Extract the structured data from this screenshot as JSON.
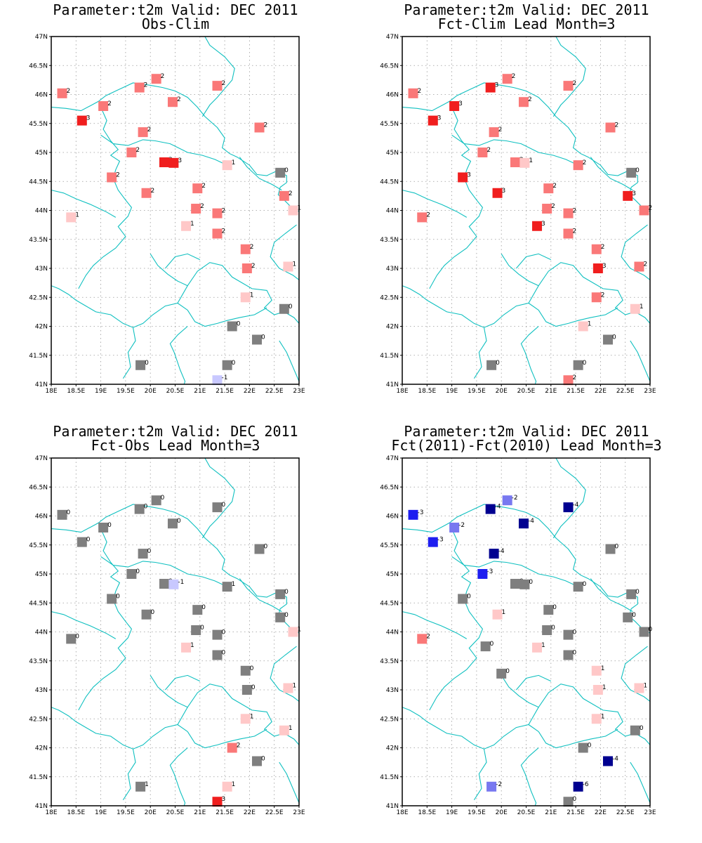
{
  "colors": {
    "-6": "#000090",
    "-4": "#000090",
    "-3": "#1e1ef0",
    "-2": "#7878f0",
    "-1": "#c8c8ff",
    "0": "#7f7f7f",
    "1": "#ffc8c8",
    "2": "#fa7878",
    "3": "#f01e1e",
    "coast": "#10c0c0",
    "grid": "#999999"
  },
  "axes": {
    "x_ticks": [
      "18E",
      "18.5E",
      "19E",
      "19.5E",
      "20E",
      "20.5E",
      "21E",
      "21.5E",
      "22E",
      "22.5E",
      "23E"
    ],
    "y_ticks": [
      "41N",
      "41.5N",
      "42N",
      "42.5N",
      "43N",
      "43.5N",
      "44N",
      "44.5N",
      "45N",
      "45.5N",
      "46N",
      "46.5N",
      "47N"
    ],
    "xlim": [
      18,
      23
    ],
    "ylim": [
      41,
      47
    ]
  },
  "panels": [
    {
      "title": "Parameter:t2m Valid: DEC 2011",
      "subtitle": "Obs-Clim",
      "stations": [
        {
          "lon": 18.22,
          "lat": 46.02,
          "v": 2
        },
        {
          "lon": 20.12,
          "lat": 46.27,
          "v": 2
        },
        {
          "lon": 19.78,
          "lat": 46.12,
          "v": 2
        },
        {
          "lon": 21.35,
          "lat": 46.15,
          "v": 2
        },
        {
          "lon": 19.05,
          "lat": 45.8,
          "v": 2
        },
        {
          "lon": 20.45,
          "lat": 45.87,
          "v": 2
        },
        {
          "lon": 18.62,
          "lat": 45.55,
          "v": 3
        },
        {
          "lon": 19.85,
          "lat": 45.35,
          "v": 2
        },
        {
          "lon": 22.2,
          "lat": 45.43,
          "v": 2
        },
        {
          "lon": 19.62,
          "lat": 45.0,
          "v": 2
        },
        {
          "lon": 20.28,
          "lat": 44.83,
          "v": 3
        },
        {
          "lon": 20.47,
          "lat": 44.82,
          "v": 3
        },
        {
          "lon": 21.55,
          "lat": 44.78,
          "v": 1
        },
        {
          "lon": 22.62,
          "lat": 44.65,
          "v": 0
        },
        {
          "lon": 19.22,
          "lat": 44.57,
          "v": 2
        },
        {
          "lon": 19.92,
          "lat": 44.3,
          "v": 2
        },
        {
          "lon": 20.95,
          "lat": 44.38,
          "v": 2
        },
        {
          "lon": 22.7,
          "lat": 44.25,
          "v": 2
        },
        {
          "lon": 20.92,
          "lat": 44.03,
          "v": 2
        },
        {
          "lon": 21.35,
          "lat": 43.95,
          "v": 2
        },
        {
          "lon": 22.88,
          "lat": 44.0,
          "v": 1
        },
        {
          "lon": 18.4,
          "lat": 43.88,
          "v": 1
        },
        {
          "lon": 20.72,
          "lat": 43.73,
          "v": 1
        },
        {
          "lon": 21.35,
          "lat": 43.6,
          "v": 2
        },
        {
          "lon": 21.92,
          "lat": 43.33,
          "v": 2
        },
        {
          "lon": 21.95,
          "lat": 43.0,
          "v": 2
        },
        {
          "lon": 22.78,
          "lat": 43.03,
          "v": 1
        },
        {
          "lon": 21.92,
          "lat": 42.5,
          "v": 1
        },
        {
          "lon": 22.7,
          "lat": 42.3,
          "v": 0
        },
        {
          "lon": 21.65,
          "lat": 42.0,
          "v": 0
        },
        {
          "lon": 22.15,
          "lat": 41.77,
          "v": 0
        },
        {
          "lon": 19.8,
          "lat": 41.33,
          "v": 0
        },
        {
          "lon": 21.55,
          "lat": 41.33,
          "v": 0
        },
        {
          "lon": 21.35,
          "lat": 41.07,
          "v": -1
        }
      ]
    },
    {
      "title": "Parameter:t2m Valid: DEC 2011",
      "subtitle": "Fct-Clim Lead Month=3",
      "stations": [
        {
          "lon": 18.22,
          "lat": 46.02,
          "v": 2
        },
        {
          "lon": 20.12,
          "lat": 46.27,
          "v": 2
        },
        {
          "lon": 19.78,
          "lat": 46.12,
          "v": 3
        },
        {
          "lon": 21.35,
          "lat": 46.15,
          "v": 2
        },
        {
          "lon": 19.05,
          "lat": 45.8,
          "v": 3
        },
        {
          "lon": 20.45,
          "lat": 45.87,
          "v": 2
        },
        {
          "lon": 18.62,
          "lat": 45.55,
          "v": 3
        },
        {
          "lon": 19.85,
          "lat": 45.35,
          "v": 2
        },
        {
          "lon": 22.2,
          "lat": 45.43,
          "v": 2
        },
        {
          "lon": 19.62,
          "lat": 45.0,
          "v": 2
        },
        {
          "lon": 20.28,
          "lat": 44.83,
          "v": 2
        },
        {
          "lon": 20.47,
          "lat": 44.82,
          "v": 1
        },
        {
          "lon": 21.55,
          "lat": 44.78,
          "v": 2
        },
        {
          "lon": 22.62,
          "lat": 44.65,
          "v": 0
        },
        {
          "lon": 19.22,
          "lat": 44.57,
          "v": 3
        },
        {
          "lon": 19.92,
          "lat": 44.3,
          "v": 3
        },
        {
          "lon": 20.95,
          "lat": 44.38,
          "v": 2
        },
        {
          "lon": 22.55,
          "lat": 44.25,
          "v": 3
        },
        {
          "lon": 20.92,
          "lat": 44.03,
          "v": 2
        },
        {
          "lon": 21.35,
          "lat": 43.95,
          "v": 2
        },
        {
          "lon": 22.88,
          "lat": 44.0,
          "v": 2
        },
        {
          "lon": 18.4,
          "lat": 43.88,
          "v": 2
        },
        {
          "lon": 20.72,
          "lat": 43.73,
          "v": 3
        },
        {
          "lon": 21.35,
          "lat": 43.6,
          "v": 2
        },
        {
          "lon": 21.92,
          "lat": 43.33,
          "v": 2
        },
        {
          "lon": 21.95,
          "lat": 43.0,
          "v": 3
        },
        {
          "lon": 22.78,
          "lat": 43.03,
          "v": 2
        },
        {
          "lon": 21.92,
          "lat": 42.5,
          "v": 2
        },
        {
          "lon": 22.7,
          "lat": 42.3,
          "v": 1
        },
        {
          "lon": 21.65,
          "lat": 42.0,
          "v": 1
        },
        {
          "lon": 22.15,
          "lat": 41.77,
          "v": 0
        },
        {
          "lon": 19.8,
          "lat": 41.33,
          "v": 0
        },
        {
          "lon": 21.55,
          "lat": 41.33,
          "v": 0
        },
        {
          "lon": 21.35,
          "lat": 41.07,
          "v": 2
        }
      ]
    },
    {
      "title": "Parameter:t2m Valid: DEC 2011",
      "subtitle": "Fct-Obs Lead Month=3",
      "stations": [
        {
          "lon": 18.22,
          "lat": 46.02,
          "v": 0
        },
        {
          "lon": 20.12,
          "lat": 46.27,
          "v": 0
        },
        {
          "lon": 19.78,
          "lat": 46.12,
          "v": 0
        },
        {
          "lon": 21.35,
          "lat": 46.15,
          "v": 0
        },
        {
          "lon": 19.05,
          "lat": 45.8,
          "v": 0
        },
        {
          "lon": 20.45,
          "lat": 45.87,
          "v": 0
        },
        {
          "lon": 18.62,
          "lat": 45.55,
          "v": 0
        },
        {
          "lon": 19.85,
          "lat": 45.35,
          "v": 0
        },
        {
          "lon": 22.2,
          "lat": 45.43,
          "v": 0
        },
        {
          "lon": 19.62,
          "lat": 45.0,
          "v": 0
        },
        {
          "lon": 20.28,
          "lat": 44.83,
          "v": 0
        },
        {
          "lon": 20.47,
          "lat": 44.82,
          "v": -1
        },
        {
          "lon": 21.55,
          "lat": 44.78,
          "v": 1,
          "c": 0
        },
        {
          "lon": 22.62,
          "lat": 44.65,
          "v": 0
        },
        {
          "lon": 19.22,
          "lat": 44.57,
          "v": 0
        },
        {
          "lon": 19.92,
          "lat": 44.3,
          "v": 0
        },
        {
          "lon": 20.95,
          "lat": 44.38,
          "v": 0
        },
        {
          "lon": 22.62,
          "lat": 44.25,
          "v": 0
        },
        {
          "lon": 20.92,
          "lat": 44.03,
          "v": 0
        },
        {
          "lon": 21.35,
          "lat": 43.95,
          "v": 0
        },
        {
          "lon": 22.88,
          "lat": 44.0,
          "v": 1
        },
        {
          "lon": 18.4,
          "lat": 43.88,
          "v": 0
        },
        {
          "lon": 20.72,
          "lat": 43.73,
          "v": 1
        },
        {
          "lon": 21.35,
          "lat": 43.6,
          "v": 0
        },
        {
          "lon": 21.92,
          "lat": 43.33,
          "v": 0
        },
        {
          "lon": 21.95,
          "lat": 43.0,
          "v": 0
        },
        {
          "lon": 22.78,
          "lat": 43.03,
          "v": 1
        },
        {
          "lon": 21.92,
          "lat": 42.5,
          "v": 1
        },
        {
          "lon": 22.7,
          "lat": 42.3,
          "v": 1
        },
        {
          "lon": 21.65,
          "lat": 42.0,
          "v": 2
        },
        {
          "lon": 22.15,
          "lat": 41.77,
          "v": 0
        },
        {
          "lon": 19.8,
          "lat": 41.33,
          "v": 1,
          "c": 0
        },
        {
          "lon": 21.55,
          "lat": 41.33,
          "v": 1
        },
        {
          "lon": 21.35,
          "lat": 41.07,
          "v": 3
        }
      ]
    },
    {
      "title": "Parameter:t2m Valid: DEC 2011",
      "subtitle": "Fct(2011)-Fct(2010) Lead Month=3",
      "stations": [
        {
          "lon": 18.22,
          "lat": 46.02,
          "v": -3
        },
        {
          "lon": 20.12,
          "lat": 46.27,
          "v": -2
        },
        {
          "lon": 19.78,
          "lat": 46.12,
          "v": -4
        },
        {
          "lon": 21.35,
          "lat": 46.15,
          "v": -4
        },
        {
          "lon": 19.05,
          "lat": 45.8,
          "v": -2
        },
        {
          "lon": 20.45,
          "lat": 45.87,
          "v": -4
        },
        {
          "lon": 18.62,
          "lat": 45.55,
          "v": -3
        },
        {
          "lon": 19.85,
          "lat": 45.35,
          "v": -4
        },
        {
          "lon": 22.2,
          "lat": 45.43,
          "v": 0
        },
        {
          "lon": 19.62,
          "lat": 45.0,
          "v": -3
        },
        {
          "lon": 20.28,
          "lat": 44.83,
          "v": 0
        },
        {
          "lon": 20.47,
          "lat": 44.82,
          "v": 0
        },
        {
          "lon": 21.55,
          "lat": 44.78,
          "v": 0
        },
        {
          "lon": 22.62,
          "lat": 44.65,
          "v": 0
        },
        {
          "lon": 19.22,
          "lat": 44.57,
          "v": 0
        },
        {
          "lon": 19.92,
          "lat": 44.3,
          "v": 1
        },
        {
          "lon": 20.95,
          "lat": 44.38,
          "v": 0
        },
        {
          "lon": 22.55,
          "lat": 44.25,
          "v": 0
        },
        {
          "lon": 20.92,
          "lat": 44.03,
          "v": 0
        },
        {
          "lon": 21.35,
          "lat": 43.95,
          "v": 0
        },
        {
          "lon": 22.88,
          "lat": 44.0,
          "v": 0
        },
        {
          "lon": 18.4,
          "lat": 43.88,
          "v": 2
        },
        {
          "lon": 19.68,
          "lat": 43.75,
          "v": 0
        },
        {
          "lon": 20.72,
          "lat": 43.73,
          "v": 1
        },
        {
          "lon": 21.35,
          "lat": 43.6,
          "v": 0
        },
        {
          "lon": 21.92,
          "lat": 43.33,
          "v": 1
        },
        {
          "lon": 20.0,
          "lat": 43.28,
          "v": 0
        },
        {
          "lon": 21.95,
          "lat": 43.0,
          "v": 1
        },
        {
          "lon": 22.78,
          "lat": 43.03,
          "v": 1
        },
        {
          "lon": 21.92,
          "lat": 42.5,
          "v": 1
        },
        {
          "lon": 22.7,
          "lat": 42.3,
          "v": 0
        },
        {
          "lon": 21.65,
          "lat": 42.0,
          "v": 0
        },
        {
          "lon": 22.15,
          "lat": 41.77,
          "v": -4
        },
        {
          "lon": 19.8,
          "lat": 41.33,
          "v": -2
        },
        {
          "lon": 21.55,
          "lat": 41.33,
          "v": -6
        },
        {
          "lon": 21.35,
          "lat": 41.07,
          "v": 0
        }
      ]
    }
  ]
}
